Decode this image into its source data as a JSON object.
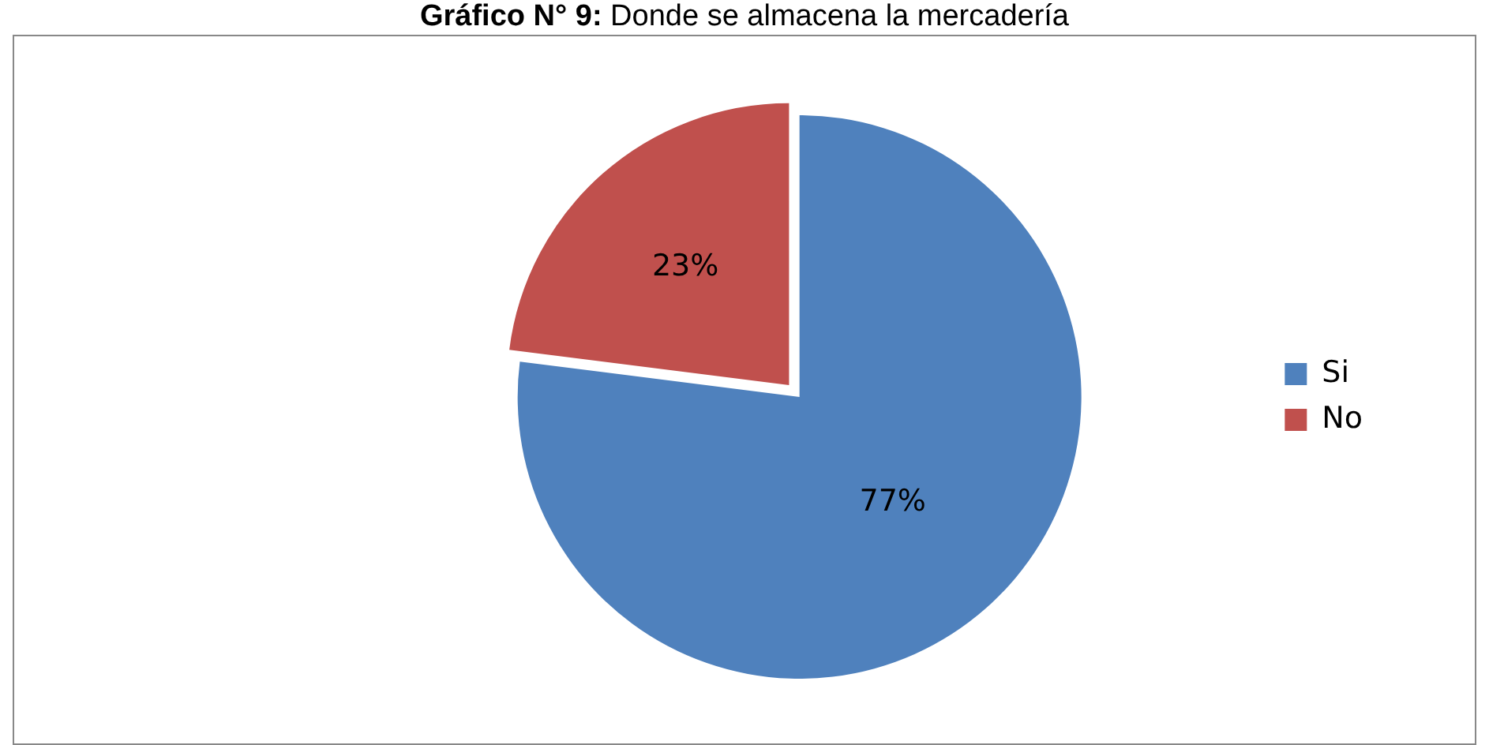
{
  "chart_data": {
    "type": "pie",
    "title": "Gráfico N° 9: Donde se almacena la mercadería",
    "categories": [
      "Si",
      "No"
    ],
    "values": [
      77,
      23
    ],
    "colors": [
      "#4f81bd",
      "#c0504d"
    ],
    "value_labels": [
      "77%",
      "23%"
    ],
    "legend": "right"
  }
}
